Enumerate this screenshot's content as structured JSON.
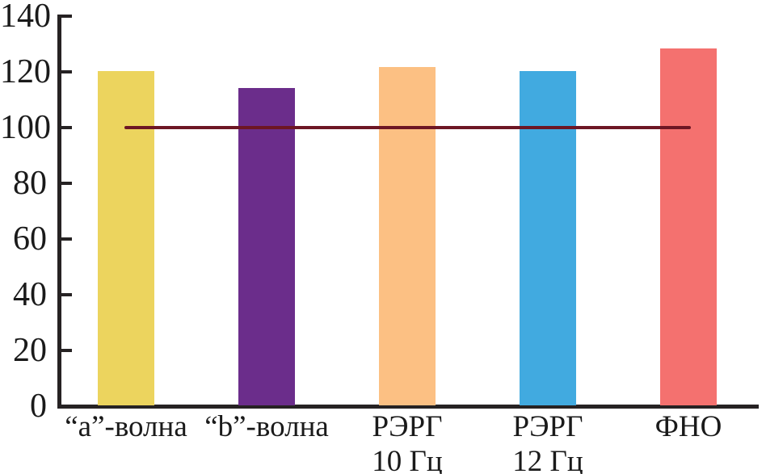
{
  "chart_data": {
    "type": "bar",
    "title": "",
    "xlabel": "",
    "ylabel": "",
    "categories": [
      "“a”-волна",
      "“b”-волна",
      "РЭРГ 10 Гц",
      "РЭРГ 12 Гц",
      "ФНО"
    ],
    "category_lines": [
      [
        "“a”-волна"
      ],
      [
        "“b”-волна"
      ],
      [
        "РЭРГ",
        "10 Гц"
      ],
      [
        "РЭРГ",
        "12 Гц"
      ],
      [
        "ФНО"
      ]
    ],
    "values": [
      120,
      114,
      121.5,
      120,
      128
    ],
    "bar_colors": [
      "#ecd45e",
      "#6b2d8b",
      "#fcc083",
      "#41aae0",
      "#f4716f"
    ],
    "yticks": [
      0,
      20,
      40,
      60,
      80,
      100,
      120,
      140
    ],
    "ylim": [
      0,
      140
    ],
    "grid": false,
    "legend_position": "none",
    "reference_line": {
      "value": 100,
      "color": "#6d1624",
      "from_category": "“a”-волна",
      "to_category": "ФНО"
    },
    "axis_color": "#262223",
    "text_color": "#1a1a1a",
    "background_color": "#ffffff"
  }
}
